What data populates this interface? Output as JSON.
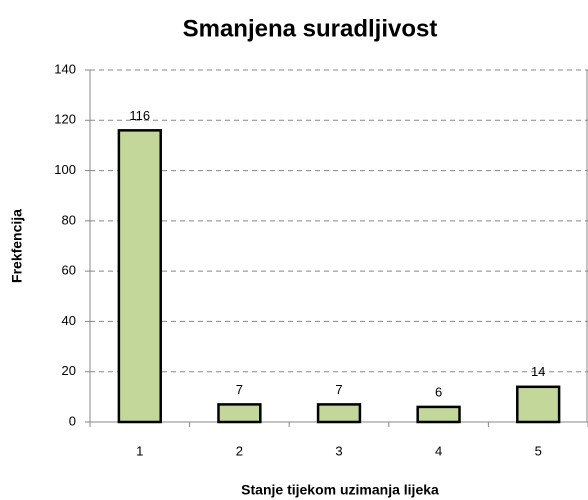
{
  "chart_data": {
    "type": "bar",
    "title": "Smanjena suradljivost",
    "x_label": "Stanje tijekom uzimanja lijeka",
    "y_label": "Frekfencija",
    "categories": [
      "1",
      "2",
      "3",
      "4",
      "5"
    ],
    "values": [
      116,
      7,
      7,
      6,
      14
    ],
    "color": "#c4d79b",
    "edge_color": "#000000",
    "ylim": [
      0,
      140
    ],
    "yticks": [
      0,
      20,
      40,
      60,
      80,
      100,
      120,
      140
    ],
    "grid": true
  }
}
